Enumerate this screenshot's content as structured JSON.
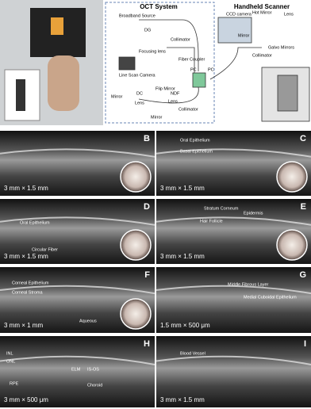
{
  "figure": {
    "top": {
      "oct_title": "OCT System",
      "scanner_title": "Handheld Scanner",
      "oct_labels": [
        "Broadband Source",
        "DG",
        "Collimator",
        "Focusing lens",
        "Line Scan Camera",
        "Fiber Coupler",
        "PC",
        "PC",
        "Mirror",
        "DC",
        "Flip Mirror",
        "NDF",
        "Lens",
        "Lens",
        "Mirror",
        "Collimator"
      ],
      "scanner_labels": [
        "CCD camera",
        "Hot Mirror",
        "Lens",
        "Mirror",
        "Collimator",
        "Galvo Mirrors"
      ]
    },
    "panels": [
      {
        "letter": "B",
        "scale": "3 mm × 1.5 mm",
        "annotations": []
      },
      {
        "letter": "C",
        "scale": "3 mm × 1.5 mm",
        "annotations": [
          "Oral Epithelium",
          "Basal Epithelium"
        ]
      },
      {
        "letter": "D",
        "scale": "3 mm × 1.5 mm",
        "annotations": [
          "Oral Epithelium",
          "Circular Fiber"
        ]
      },
      {
        "letter": "E",
        "scale": "3 mm × 1.5 mm",
        "annotations": [
          "Stratum Corneum",
          "Epidermis",
          "Hair Follicle"
        ]
      },
      {
        "letter": "F",
        "scale": "3 mm × 1 mm",
        "annotations": [
          "Corneal Epithelium",
          "Corneal Stroma",
          "Aqueous"
        ]
      },
      {
        "letter": "G",
        "scale": "1.5 mm × 500 μm",
        "annotations": [
          "Middle Fibrous Layer",
          "Medial Cuboidal Epithelium"
        ]
      },
      {
        "letter": "H",
        "scale": "3 mm × 500 μm",
        "annotations": [
          "INL",
          "ONL",
          "ELM",
          "IS-OS",
          "RPE",
          "Choroid"
        ]
      },
      {
        "letter": "I",
        "scale": "3 mm × 1.5 mm",
        "annotations": [
          "Blood Vessel"
        ]
      }
    ]
  }
}
